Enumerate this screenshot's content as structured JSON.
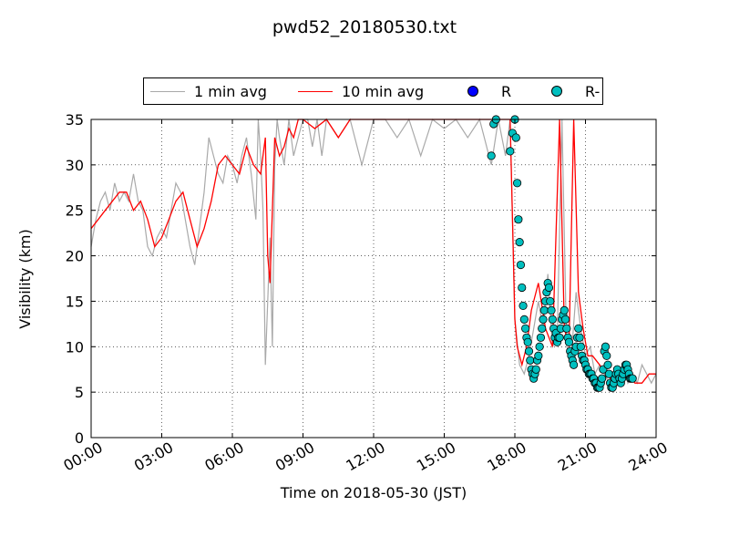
{
  "chart_data": {
    "type": "line",
    "title": "pwd52_20180530.txt",
    "xlabel": "Time on 2018-05-30 (JST)",
    "ylabel": "Visibility (km)",
    "xlim_hours": [
      0,
      24
    ],
    "ylim": [
      0,
      35
    ],
    "x_ticks": [
      "00:00",
      "03:00",
      "06:00",
      "09:00",
      "12:00",
      "15:00",
      "18:00",
      "21:00",
      "24:00"
    ],
    "y_ticks": [
      "0",
      "5",
      "10",
      "15",
      "20",
      "25",
      "30",
      "35"
    ],
    "grid": true,
    "legend_position": "top-center",
    "colors": {
      "one_min": "#a9a9a9",
      "ten_min": "#ff0000",
      "R": "#0000ff",
      "R_minus": "#00bfbf"
    },
    "series": [
      {
        "name": "1 min avg",
        "x_hours": [
          0,
          0.2,
          0.4,
          0.6,
          0.8,
          1,
          1.2,
          1.4,
          1.6,
          1.8,
          2,
          2.2,
          2.4,
          2.6,
          2.8,
          3,
          3.2,
          3.4,
          3.6,
          3.8,
          4,
          4.2,
          4.4,
          4.6,
          4.8,
          5,
          5.2,
          5.4,
          5.6,
          5.8,
          6,
          6.2,
          6.4,
          6.6,
          6.8,
          7,
          7.1,
          7.2,
          7.3,
          7.4,
          7.5,
          7.6,
          7.7,
          7.8,
          7.9,
          8,
          8.2,
          8.4,
          8.6,
          8.8,
          9,
          9.2,
          9.4,
          9.6,
          9.8,
          10,
          10.5,
          11,
          11.5,
          12,
          12.5,
          13,
          13.5,
          14,
          14.5,
          15,
          15.5,
          16,
          16.5,
          17,
          17.3,
          17.6,
          17.8,
          18,
          18.2,
          18.4,
          18.6,
          18.8,
          19,
          19.2,
          19.4,
          19.6,
          19.8,
          20,
          20.2,
          20.4,
          20.6,
          20.8,
          21,
          21.2,
          21.4,
          21.6,
          21.8,
          22,
          22.2,
          22.4,
          22.6,
          22.8,
          23,
          23.2,
          23.4,
          23.6,
          23.8,
          24
        ],
        "values": [
          21,
          24,
          26,
          27,
          25,
          28,
          26,
          27,
          26,
          29,
          26,
          25,
          21,
          20,
          22,
          23,
          22,
          25,
          28,
          27,
          24,
          21,
          19,
          23,
          27,
          33,
          31,
          29,
          28,
          31,
          30,
          28,
          31,
          33,
          29,
          24,
          35,
          31,
          25,
          8,
          15,
          22,
          10,
          30,
          35,
          33,
          30,
          35,
          31,
          33,
          35,
          35,
          32,
          35,
          31,
          35,
          33,
          35,
          30,
          35,
          35,
          33,
          35,
          31,
          35,
          34,
          35,
          33,
          35,
          30,
          35,
          31,
          35,
          13,
          8,
          7,
          9,
          12,
          15,
          12,
          18,
          10,
          11,
          35,
          10,
          9,
          16,
          12,
          9,
          10,
          7,
          8,
          7,
          6,
          5,
          6,
          8,
          6,
          7,
          6,
          8,
          7,
          6,
          7
        ]
      },
      {
        "name": "10 min avg",
        "x_hours": [
          0,
          0.3,
          0.6,
          0.9,
          1.2,
          1.5,
          1.8,
          2.1,
          2.4,
          2.7,
          3,
          3.3,
          3.6,
          3.9,
          4.2,
          4.5,
          4.8,
          5.1,
          5.4,
          5.7,
          6,
          6.3,
          6.6,
          6.9,
          7.2,
          7.4,
          7.5,
          7.6,
          7.8,
          8,
          8.2,
          8.4,
          8.6,
          8.8,
          9,
          9.5,
          10,
          10.5,
          11,
          11.5,
          12,
          12.5,
          13,
          13.5,
          14,
          14.5,
          15,
          15.5,
          16,
          16.5,
          17,
          17.3,
          17.6,
          17.8,
          18,
          18.1,
          18.3,
          18.5,
          18.7,
          19,
          19.3,
          19.6,
          19.9,
          20.1,
          20.3,
          20.5,
          20.7,
          20.9,
          21.1,
          21.3,
          21.6,
          21.9,
          22.2,
          22.5,
          22.8,
          23.1,
          23.4,
          23.7,
          24
        ],
        "values": [
          23,
          24,
          25,
          26,
          27,
          27,
          25,
          26,
          24,
          21,
          22,
          24,
          26,
          27,
          24,
          21,
          23,
          26,
          30,
          31,
          30,
          29,
          32,
          30,
          29,
          33,
          20,
          17,
          33,
          31,
          32,
          34,
          33,
          35,
          35,
          34,
          35,
          33,
          35,
          35,
          35,
          35,
          35,
          35,
          35,
          35,
          35,
          35,
          35,
          35,
          35,
          35,
          35,
          35,
          13,
          10,
          8,
          10,
          14,
          17,
          12,
          10,
          35,
          12,
          10,
          35,
          16,
          12,
          9,
          9,
          8,
          7,
          6,
          6,
          7,
          6,
          6,
          7,
          7
        ]
      },
      {
        "name": "R",
        "x_hours": [],
        "values": []
      },
      {
        "name": "R-",
        "x_hours": [
          17,
          17.1,
          17.2,
          17.8,
          17.9,
          18,
          18.05,
          18.1,
          18.15,
          18.2,
          18.25,
          18.3,
          18.35,
          18.4,
          18.45,
          18.5,
          18.55,
          18.6,
          18.65,
          18.7,
          18.75,
          18.8,
          18.85,
          18.9,
          18.95,
          19,
          19.05,
          19.1,
          19.15,
          19.2,
          19.25,
          19.3,
          19.35,
          19.4,
          19.45,
          19.5,
          19.55,
          19.6,
          19.65,
          19.7,
          19.75,
          19.8,
          19.85,
          19.9,
          19.95,
          20,
          20.05,
          20.1,
          20.15,
          20.2,
          20.25,
          20.3,
          20.35,
          20.4,
          20.45,
          20.5,
          20.55,
          20.6,
          20.65,
          20.7,
          20.75,
          20.8,
          20.85,
          20.9,
          20.95,
          21,
          21.05,
          21.1,
          21.15,
          21.2,
          21.25,
          21.3,
          21.35,
          21.4,
          21.45,
          21.5,
          21.55,
          21.6,
          21.65,
          21.7,
          21.75,
          21.8,
          21.85,
          21.9,
          21.95,
          22,
          22.05,
          22.1,
          22.15,
          22.2,
          22.25,
          22.3,
          22.35,
          22.4,
          22.45,
          22.5,
          22.55,
          22.6,
          22.65,
          22.7,
          22.75,
          22.8,
          22.85,
          22.9,
          22.95,
          23
        ],
        "values": [
          31,
          34.5,
          35,
          31.5,
          33.5,
          35,
          33,
          28,
          24,
          21.5,
          19,
          16.5,
          14.5,
          13,
          12,
          11,
          10.5,
          9.5,
          8.5,
          7.5,
          7,
          6.5,
          7,
          7.5,
          8.5,
          9,
          10,
          11,
          12,
          13,
          14,
          15,
          16,
          17,
          16.5,
          15,
          14,
          13,
          12,
          11,
          11.5,
          10.5,
          11,
          11,
          12,
          13,
          13.5,
          14,
          13,
          12,
          11,
          10.5,
          9.5,
          9,
          8.5,
          8,
          9.5,
          10,
          11,
          12,
          11,
          10,
          9,
          8.5,
          8.5,
          8,
          7.5,
          7.5,
          7,
          7,
          7,
          6.5,
          6.5,
          6,
          6,
          5.5,
          5.5,
          5.5,
          6,
          6.5,
          7.5,
          9.5,
          10,
          9,
          8,
          7,
          6,
          5.5,
          5.5,
          6,
          6.5,
          7,
          7.5,
          7,
          6.5,
          6,
          6.5,
          7,
          7.5,
          8,
          8,
          7.5,
          7,
          6.5,
          6.5,
          6.5
        ]
      }
    ]
  }
}
